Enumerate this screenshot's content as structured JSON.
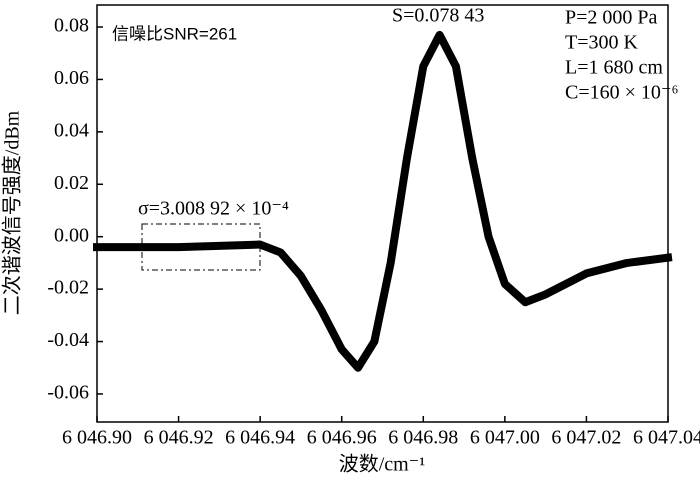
{
  "chart_data": {
    "type": "line",
    "xlabel": "波数/cm⁻¹",
    "ylabel": "二次谐波信号强度/dBm",
    "annotations": [
      "信噪比SNR=261",
      "S=0.078 43",
      "P=2 000 Pa",
      "T=300 K",
      "L=1 680 cm",
      "C=160 × 10⁻⁶",
      "σ=3.008 92 × 10⁻⁴"
    ],
    "x": [
      6046.9,
      6046.92,
      6046.94,
      6046.945,
      6046.95,
      6046.955,
      6046.96,
      6046.964,
      6046.968,
      6046.972,
      6046.976,
      6046.98,
      6046.984,
      6046.988,
      6046.992,
      6046.996,
      6047.0,
      6047.005,
      6047.01,
      6047.02,
      6047.03,
      6047.04
    ],
    "series": [
      {
        "color": "#000000",
        "values": [
          -0.004,
          -0.004,
          -0.003,
          -0.006,
          -0.015,
          -0.028,
          -0.043,
          -0.05,
          -0.04,
          -0.01,
          0.03,
          0.065,
          0.077,
          0.065,
          0.03,
          0.0,
          -0.018,
          -0.025,
          -0.022,
          -0.014,
          -0.01,
          -0.008
        ]
      }
    ],
    "xlim": [
      6046.9,
      6047.04
    ],
    "xticks": [
      {
        "value": 6046.9,
        "label": "6 046.90"
      },
      {
        "value": 6046.92,
        "label": "6 046.92"
      },
      {
        "value": 6046.94,
        "label": "6 046.94"
      },
      {
        "value": 6046.96,
        "label": "6 046.96"
      },
      {
        "value": 6046.98,
        "label": "6 046.98"
      },
      {
        "value": 6047.0,
        "label": "6 047.00"
      },
      {
        "value": 6047.02,
        "label": "6 047.02"
      },
      {
        "value": 6047.04,
        "label": "6 047.04"
      }
    ],
    "ylim": [
      -0.0707,
      0.0884
    ],
    "yticks": [
      -0.06,
      -0.04,
      -0.02,
      {
        "value": 0,
        "label": "0.00"
      },
      0.02,
      0.04,
      0.06,
      0.08
    ],
    "grid": false
  }
}
